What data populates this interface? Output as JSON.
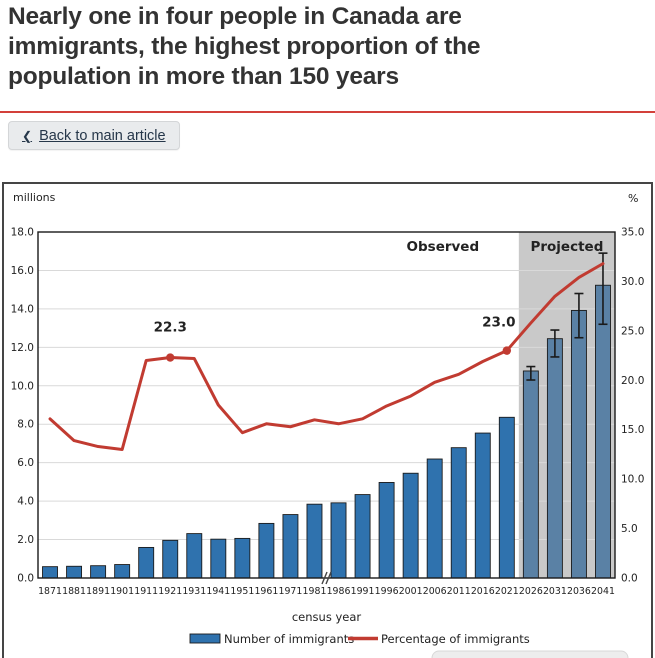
{
  "page": {
    "title": "Nearly one in four people in Canada are immigrants, the highest proportion of the population in more than 150 years",
    "title_lines": [
      "Nearly one in four people in Canada are",
      "immigrants, the highest proportion of the",
      "population in more than 150 years"
    ],
    "back_button_label": "Back to main article",
    "back_icon": "❮",
    "accent_red": "#d3403a"
  },
  "chart_data": {
    "type": "bar",
    "subtype": "bar_line_combo",
    "title": "",
    "categories": [
      "1871",
      "1881",
      "1891",
      "1901",
      "1911",
      "1921",
      "1931",
      "1941",
      "1951",
      "1961",
      "1971",
      "1981",
      "1986",
      "1991",
      "1996",
      "2001",
      "2006",
      "2011",
      "2016",
      "2021",
      "2026",
      "2031",
      "2036",
      "2041"
    ],
    "series": [
      {
        "name": "Number of immigrants",
        "type": "bar",
        "axis": "left",
        "color": "#2F72AE",
        "projected_color": "#5A81A5",
        "values": [
          0.59,
          0.61,
          0.64,
          0.7,
          1.59,
          1.96,
          2.31,
          2.02,
          2.06,
          2.84,
          3.3,
          3.84,
          3.91,
          4.34,
          4.97,
          5.45,
          6.19,
          6.78,
          7.54,
          8.36,
          10.77,
          12.45,
          13.92,
          15.23
        ]
      },
      {
        "name": "Percentage of immigrants",
        "type": "line",
        "axis": "right",
        "color": "#C13B31",
        "values": [
          16.1,
          13.9,
          13.3,
          13.0,
          22.0,
          22.3,
          22.2,
          17.5,
          14.7,
          15.6,
          15.3,
          16.0,
          15.6,
          16.1,
          17.4,
          18.4,
          19.8,
          20.6,
          21.9,
          23.0,
          25.8,
          28.5,
          30.4,
          31.8
        ],
        "marker_points": [
          "1921",
          "2021"
        ]
      }
    ],
    "error_bars": [
      {
        "category": "2026",
        "low": 10.3,
        "high": 11.0
      },
      {
        "category": "2031",
        "low": 11.5,
        "high": 12.9
      },
      {
        "category": "2036",
        "low": 12.5,
        "high": 14.8
      },
      {
        "category": "2041",
        "low": 13.2,
        "high": 16.9
      }
    ],
    "annotations": [
      {
        "category": "1921",
        "text": "22.3"
      },
      {
        "category": "2021",
        "text": "23.0"
      }
    ],
    "left_axis": {
      "title": "millions",
      "min": 0,
      "max": 18,
      "step": 2,
      "decimals": 1
    },
    "right_axis": {
      "title": "%",
      "min": 0,
      "max": 35,
      "step": 5,
      "decimals": 1
    },
    "x_axis": {
      "title": "census year",
      "break_between": [
        "1981",
        "1986"
      ]
    },
    "regions": {
      "observed_label": "Observed",
      "projected_label": "Projected",
      "projected_start_category": "2026",
      "projected_bg": "#C9C9C9"
    },
    "grid": "horizontal gridlines every 2 million (left axis)",
    "legend": {
      "position": "bottom",
      "items": [
        "Number of immigrants",
        "Percentage of immigrants"
      ]
    }
  }
}
